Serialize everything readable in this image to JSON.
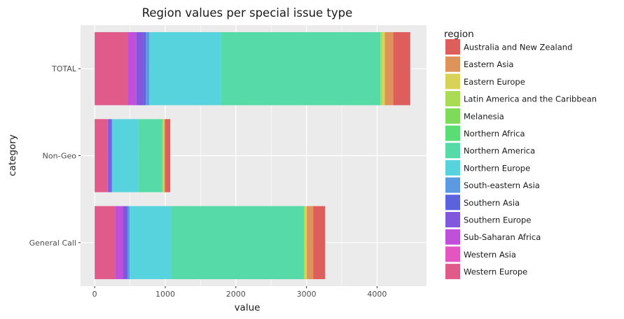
{
  "chart_data": {
    "type": "bar",
    "orientation": "horizontal",
    "stacked": true,
    "title": "Region values per special issue type",
    "xlabel": "value",
    "ylabel": "category",
    "xlim": [
      -200,
      4700
    ],
    "xticks": [
      0,
      1000,
      2000,
      3000,
      4000
    ],
    "grid": true,
    "legend_title": "region",
    "legend_position": "right",
    "categories": [
      "General Call",
      "Non-Geo",
      "TOTAL"
    ],
    "series": [
      {
        "name": "Western Europe",
        "color": "#E05A8A",
        "values": [
          290,
          180,
          470
        ]
      },
      {
        "name": "Western Asia",
        "color": "#E555C2",
        "values": [
          0,
          0,
          0
        ]
      },
      {
        "name": "Sub-Saharan Africa",
        "color": "#C050DB",
        "values": [
          110,
          10,
          120
        ]
      },
      {
        "name": "Southern Europe",
        "color": "#8158DD",
        "values": [
          55,
          35,
          110
        ]
      },
      {
        "name": "Southern Asia",
        "color": "#5C62DE",
        "values": [
          10,
          15,
          25
        ]
      },
      {
        "name": "South-eastern Asia",
        "color": "#5B9AE0",
        "values": [
          30,
          10,
          50
        ]
      },
      {
        "name": "Northern Europe",
        "color": "#57D3DE",
        "values": [
          590,
          370,
          1010
        ]
      },
      {
        "name": "Northern America",
        "color": "#56DBA8",
        "values": [
          1880,
          340,
          2260
        ]
      },
      {
        "name": "Northern Africa",
        "color": "#5ADD74",
        "values": [
          0,
          0,
          0
        ]
      },
      {
        "name": "Melanesia",
        "color": "#7EDB5A",
        "values": [
          0,
          0,
          0
        ]
      },
      {
        "name": "Latin America and the Caribbean",
        "color": "#AADB55",
        "values": [
          15,
          10,
          25
        ]
      },
      {
        "name": "Eastern Europe",
        "color": "#D8D259",
        "values": [
          25,
          15,
          40
        ]
      },
      {
        "name": "Eastern Asia",
        "color": "#DD9359",
        "values": [
          90,
          15,
          120
        ]
      },
      {
        "name": "Australia and New Zealand",
        "color": "#DD5E5A",
        "values": [
          170,
          70,
          240
        ]
      }
    ],
    "legend_order": [
      "Australia and New Zealand",
      "Eastern Asia",
      "Eastern Europe",
      "Latin America and the Caribbean",
      "Melanesia",
      "Northern Africa",
      "Northern America",
      "Northern Europe",
      "South-eastern Asia",
      "Southern Asia",
      "Southern Europe",
      "Sub-Saharan Africa",
      "Western Asia",
      "Western Europe"
    ],
    "panel_background": "#EBEBEB",
    "grid_color": "#FFFFFF"
  }
}
